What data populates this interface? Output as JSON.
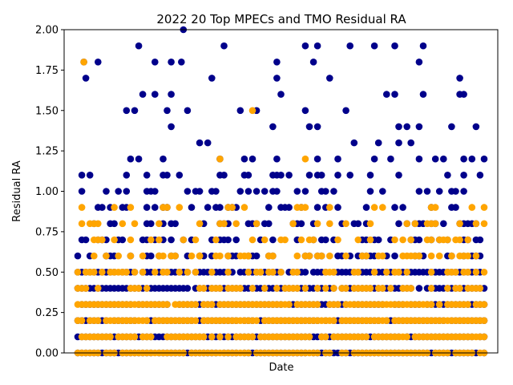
{
  "chart_data": {
    "type": "scatter",
    "title": "2022 20 Top MPECs and TMO Residual RA",
    "xlabel": "Date",
    "ylabel": "Residual RA",
    "ylim": [
      0,
      2.0
    ],
    "yticks": [
      "0.00",
      "0.25",
      "0.50",
      "0.75",
      "1.00",
      "1.25",
      "1.50",
      "1.75",
      "2.00"
    ],
    "x_ticks_shown": false,
    "grid": false,
    "legend": "none",
    "x_domain": [
      0,
      100
    ],
    "series": [
      {
        "color": "#00008b",
        "x_min": 0,
        "x_max": 100,
        "step": 1,
        "dense_levels": [
          0.0,
          0.1,
          0.2,
          0.3,
          0.4,
          0.5
        ],
        "sparse_levels": [
          0.6,
          0.7,
          0.8,
          0.9,
          1.0,
          1.1,
          1.2,
          1.3,
          1.4,
          1.5,
          1.6,
          1.7,
          1.8,
          1.9,
          2.0
        ],
        "highlights": [
          {
            "x": 1.5,
            "y": 1.8
          },
          {
            "x": 26,
            "y": 2.0
          },
          {
            "x": 25.5,
            "y": 1.8
          },
          {
            "x": 43,
            "y": 1.2
          },
          {
            "x": 44,
            "y": 1.5
          },
          {
            "x": 35,
            "y": 1.2
          },
          {
            "x": 73,
            "y": 1.9
          },
          {
            "x": 76,
            "y": 1.6
          },
          {
            "x": 78,
            "y": 1.6
          },
          {
            "x": 85,
            "y": 1.6
          },
          {
            "x": 94,
            "y": 1.7
          },
          {
            "x": 95,
            "y": 1.6
          },
          {
            "x": 98,
            "y": 1.4
          },
          {
            "x": 33,
            "y": 1.7
          },
          {
            "x": 49,
            "y": 1.8
          },
          {
            "x": 62,
            "y": 1.7
          },
          {
            "x": 50,
            "y": 1.6
          },
          {
            "x": 12,
            "y": 1.5
          },
          {
            "x": 14,
            "y": 1.5
          },
          {
            "x": 19,
            "y": 1.6
          },
          {
            "x": 66,
            "y": 1.5
          },
          {
            "x": 57,
            "y": 1.4
          },
          {
            "x": 79,
            "y": 1.4
          }
        ]
      },
      {
        "color": "#ffa500",
        "x_min": 0,
        "x_max": 100,
        "step": 1,
        "dense_levels": [
          0.0,
          0.1,
          0.2,
          0.3
        ],
        "sparse_levels": [
          0.4,
          0.5,
          0.6,
          0.7,
          0.8,
          0.9
        ],
        "highlights": [
          {
            "x": 1.5,
            "y": 1.8
          },
          {
            "x": 43,
            "y": 1.5
          },
          {
            "x": 35,
            "y": 1.2
          },
          {
            "x": 56,
            "y": 1.2
          },
          {
            "x": 20,
            "y": 0.6
          },
          {
            "x": 30,
            "y": 0.6
          },
          {
            "x": 42,
            "y": 0.6
          },
          {
            "x": 44,
            "y": 0.5
          },
          {
            "x": 45,
            "y": 0.5
          },
          {
            "x": 78,
            "y": 0.5
          },
          {
            "x": 82,
            "y": 0.7
          },
          {
            "x": 86,
            "y": 0.8
          },
          {
            "x": 87,
            "y": 0.9
          },
          {
            "x": 86,
            "y": 0.7
          },
          {
            "x": 63,
            "y": 0.4
          },
          {
            "x": 80,
            "y": 0.4
          },
          {
            "x": 91,
            "y": 0.4
          },
          {
            "x": 10,
            "y": 0.5
          }
        ]
      }
    ]
  }
}
